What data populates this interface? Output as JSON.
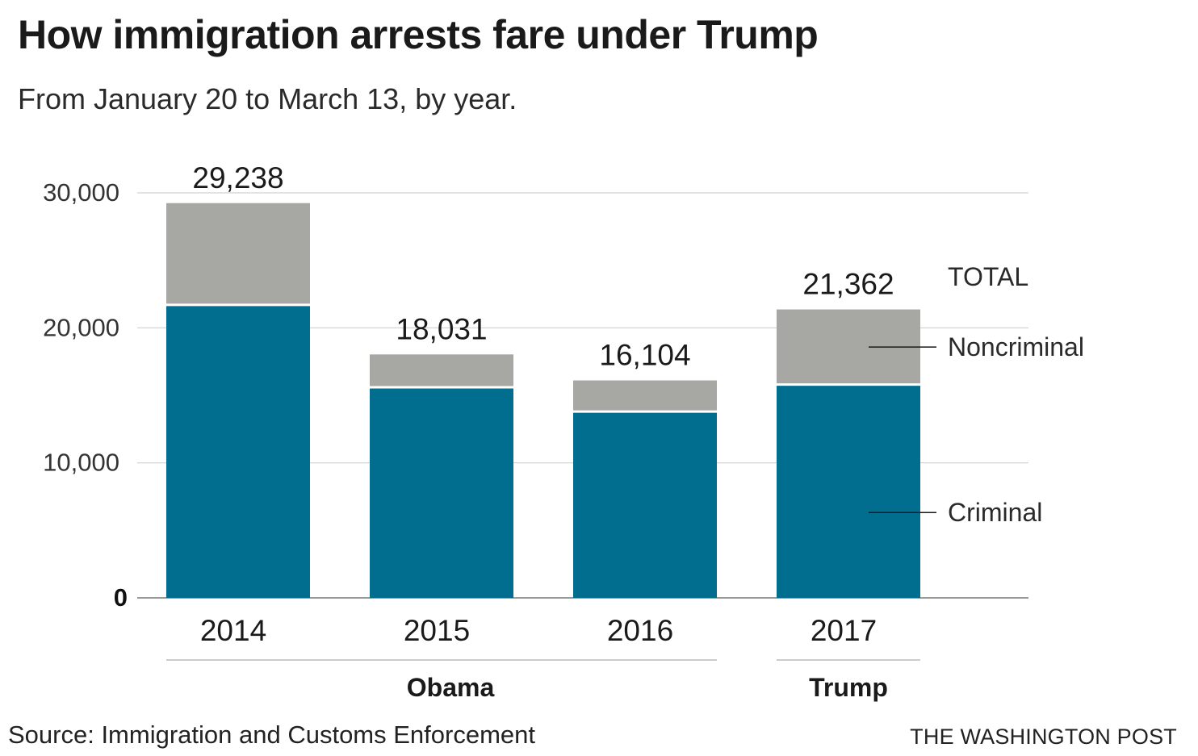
{
  "title": "How immigration arrests fare under Trump",
  "subtitle": "From January 20 to March 13, by year.",
  "source": "Source: Immigration and Customs Enforcement",
  "credit": "THE WASHINGTON POST",
  "colors": {
    "criminal": "#026e8f",
    "noncriminal": "#a7a8a3",
    "grid": "#d0d0d0",
    "axis": "#999999"
  },
  "chart_data": {
    "type": "bar",
    "stacked": true,
    "categories": [
      "2014",
      "2015",
      "2016",
      "2017"
    ],
    "series": [
      {
        "name": "Criminal",
        "values": [
          21700,
          15600,
          13800,
          15800
        ]
      },
      {
        "name": "Noncriminal",
        "values": [
          7538,
          2431,
          2304,
          5562
        ]
      }
    ],
    "totals": [
      29238,
      18031,
      16104,
      21362
    ],
    "total_labels": [
      "29,238",
      "18,031",
      "16,104",
      "21,362"
    ],
    "total_legend": "TOTAL",
    "groups": [
      {
        "label": "Obama",
        "categories": [
          "2014",
          "2015",
          "2016"
        ]
      },
      {
        "label": "Trump",
        "categories": [
          "2017"
        ]
      }
    ],
    "yticks": [
      0,
      10000,
      20000,
      30000
    ],
    "ytick_labels": [
      "0",
      "10,000",
      "20,000",
      "30,000"
    ],
    "ylim": [
      0,
      30000
    ],
    "grid": true,
    "legend_placement": "right"
  }
}
